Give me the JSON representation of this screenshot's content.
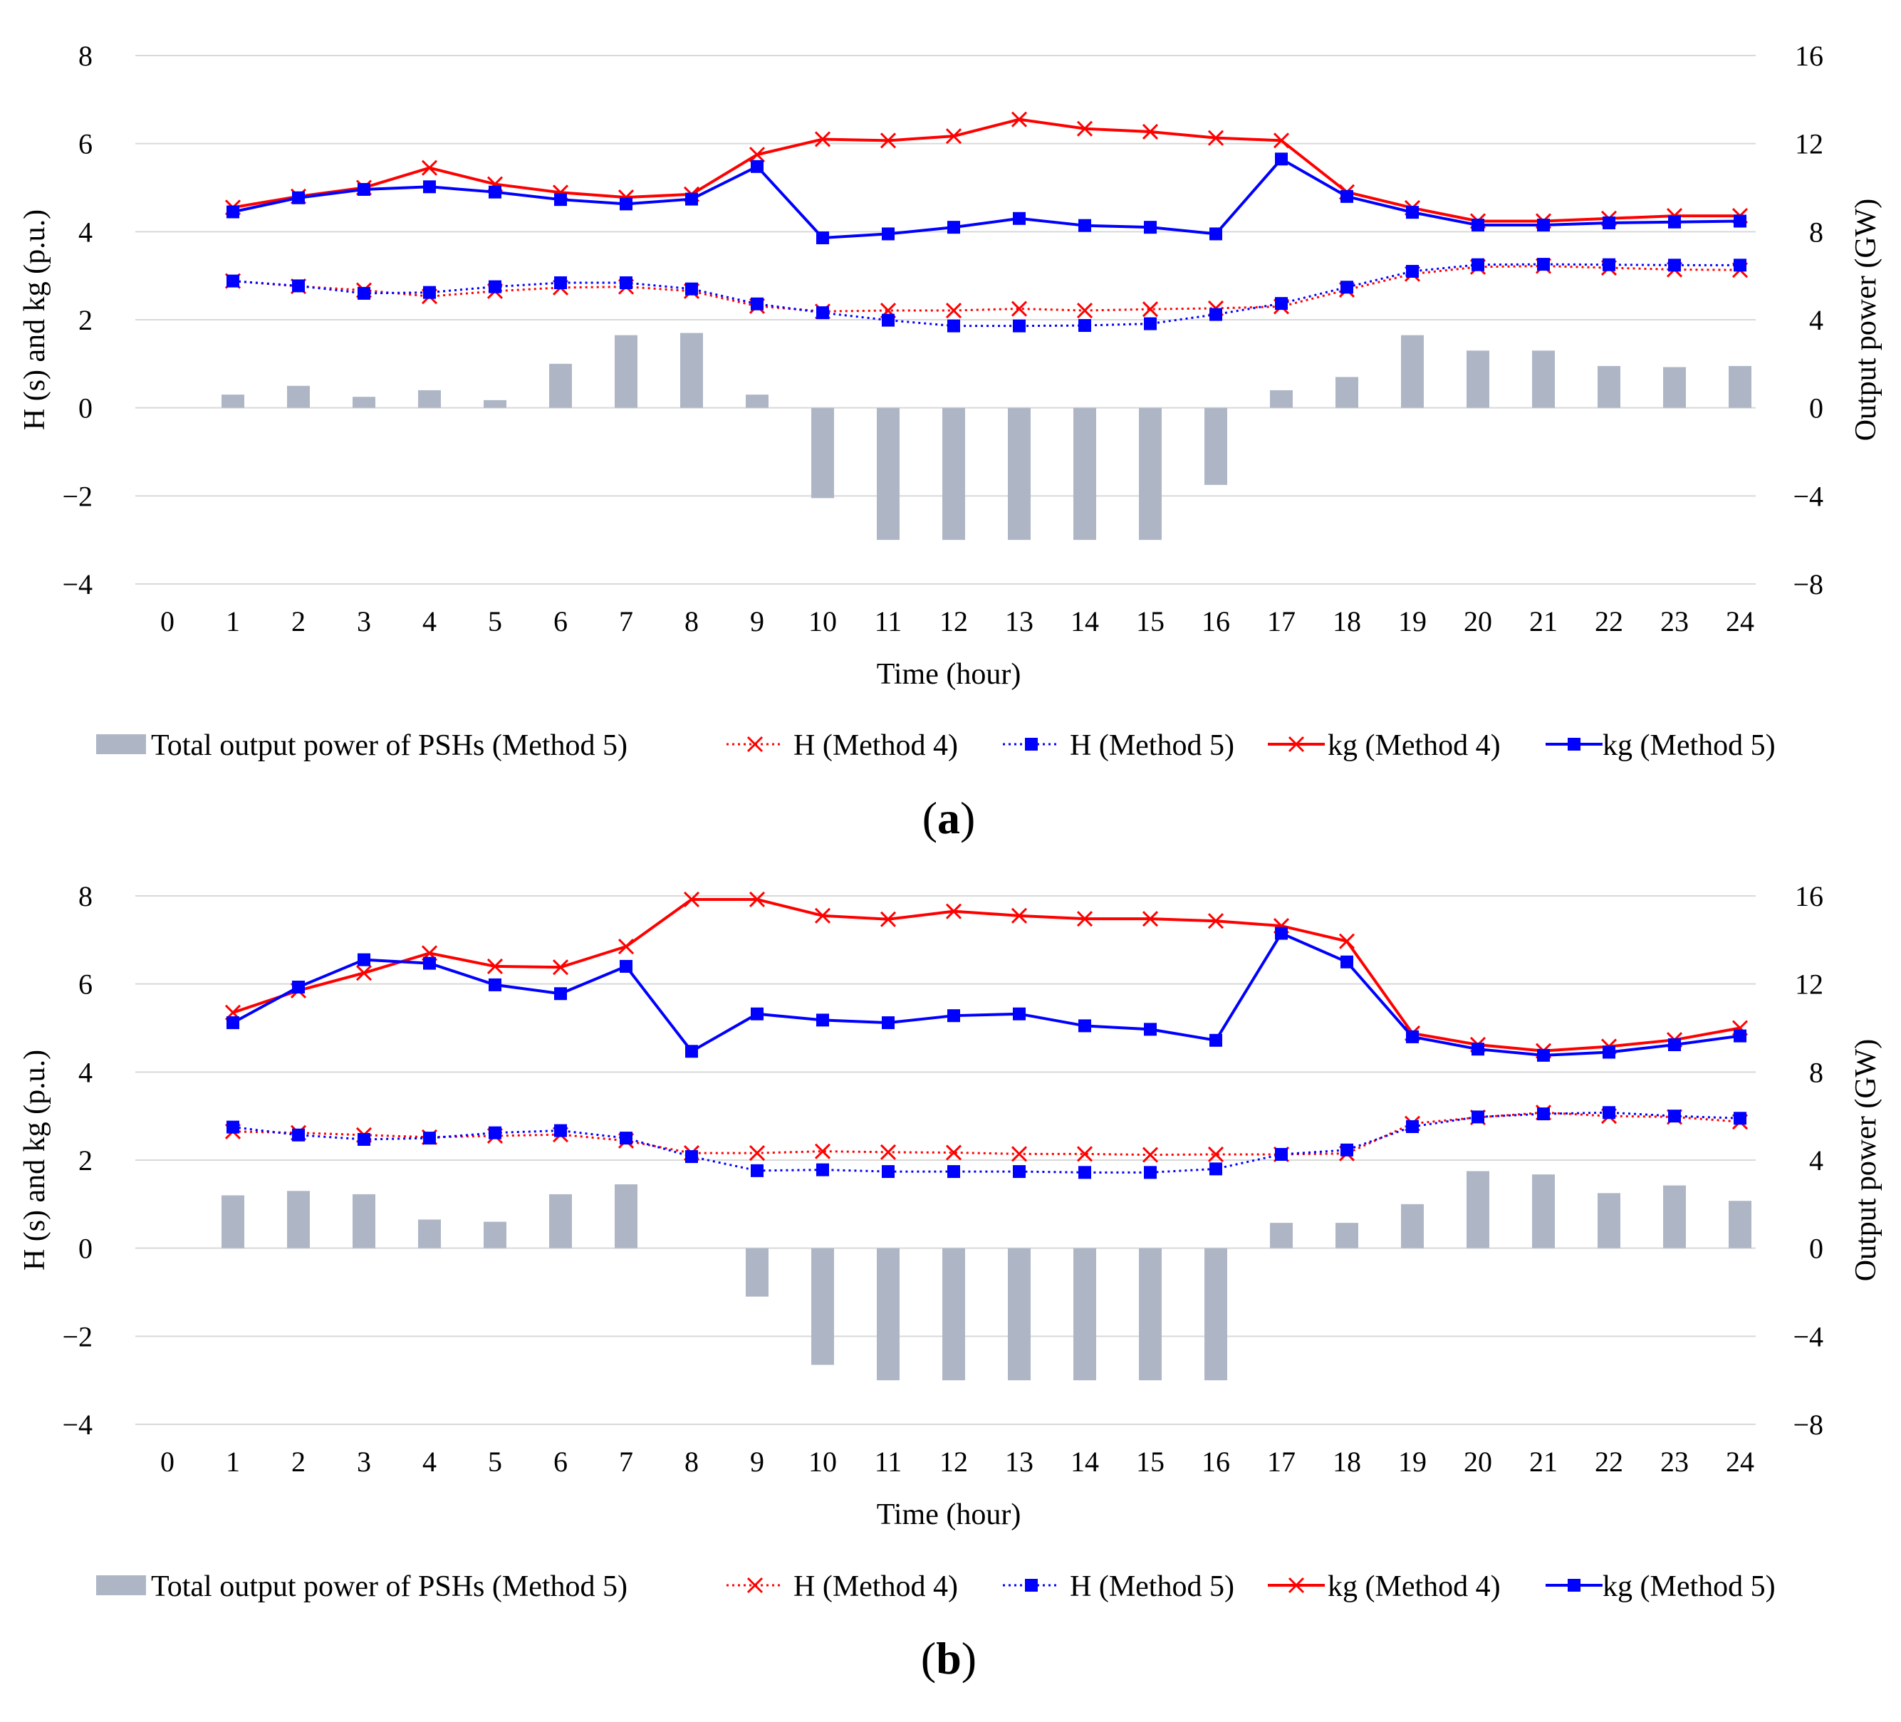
{
  "chart_data": [
    {
      "type": "bar+line",
      "panel_label": {
        "open": "(",
        "letter": "a",
        "close": ")"
      },
      "xlabel": "Time (hour)",
      "ylabel_left": "H (s) and kg (p.u.)",
      "ylabel_right": "Output power (GW)",
      "ylim_left": [
        -4,
        8
      ],
      "ylim_right": [
        -8,
        16
      ],
      "yticks_left": [
        "−4",
        "−2",
        "0",
        "2",
        "4",
        "6",
        "8"
      ],
      "yticks_right": [
        "−8",
        "−4",
        "0",
        "4",
        "8",
        "12",
        "16"
      ],
      "x_ticks": [
        "0",
        "1",
        "2",
        "3",
        "4",
        "5",
        "6",
        "7",
        "8",
        "9",
        "10",
        "11",
        "12",
        "13",
        "14",
        "15",
        "16",
        "17",
        "18",
        "19",
        "20",
        "21",
        "22",
        "23",
        "24"
      ],
      "hours": [
        1,
        2,
        3,
        4,
        5,
        6,
        7,
        8,
        9,
        10,
        11,
        12,
        13,
        14,
        15,
        16,
        17,
        18,
        19,
        20,
        21,
        22,
        23,
        24
      ],
      "legend": [
        "Total output power of PSHs (Method 5)",
        "H (Method 4)",
        "H (Method 5)",
        "kg (Method 4)",
        "kg (Method 5)"
      ],
      "bars_gw": [
        0.6,
        1.0,
        0.5,
        0.8,
        0.35,
        2.0,
        3.3,
        3.4,
        0.6,
        -4.1,
        -6.0,
        -6.0,
        -6.0,
        -6.0,
        -6.0,
        -3.5,
        0.8,
        1.4,
        3.3,
        2.6,
        2.6,
        1.9,
        1.85,
        1.9
      ],
      "series": [
        {
          "name": "H (Method 4)",
          "style": "dotted-x",
          "color": "#ff0000",
          "values": [
            2.88,
            2.76,
            2.67,
            2.53,
            2.65,
            2.73,
            2.75,
            2.65,
            2.31,
            2.19,
            2.21,
            2.21,
            2.25,
            2.21,
            2.24,
            2.26,
            2.3,
            2.68,
            3.04,
            3.2,
            3.22,
            3.18,
            3.14,
            3.13
          ]
        },
        {
          "name": "H (Method 5)",
          "style": "dotted-square",
          "color": "#0000ff",
          "values": [
            2.88,
            2.77,
            2.6,
            2.62,
            2.75,
            2.84,
            2.84,
            2.7,
            2.36,
            2.16,
            1.99,
            1.86,
            1.86,
            1.87,
            1.91,
            2.12,
            2.37,
            2.74,
            3.1,
            3.25,
            3.26,
            3.25,
            3.24,
            3.24
          ]
        },
        {
          "name": "kg (Method 4)",
          "style": "solid-x",
          "color": "#ff0000",
          "values": [
            4.55,
            4.8,
            5.0,
            5.45,
            5.08,
            4.89,
            4.78,
            4.85,
            5.75,
            6.1,
            6.07,
            6.17,
            6.55,
            6.34,
            6.27,
            6.13,
            6.07,
            4.9,
            4.54,
            4.24,
            4.24,
            4.3,
            4.36,
            4.36
          ]
        },
        {
          "name": "kg (Method 5)",
          "style": "solid-square",
          "color": "#0000ff",
          "values": [
            4.45,
            4.77,
            4.96,
            5.02,
            4.9,
            4.73,
            4.63,
            4.74,
            5.48,
            3.86,
            3.95,
            4.1,
            4.3,
            4.14,
            4.1,
            3.95,
            5.65,
            4.8,
            4.44,
            4.15,
            4.15,
            4.2,
            4.22,
            4.24
          ]
        }
      ]
    },
    {
      "type": "bar+line",
      "panel_label": {
        "open": "(",
        "letter": "b",
        "close": ")"
      },
      "xlabel": "Time (hour)",
      "ylabel_left": "H (s) and kg (p.u.)",
      "ylabel_right": "Output power (GW)",
      "ylim_left": [
        -4,
        8
      ],
      "ylim_right": [
        -8,
        16
      ],
      "yticks_left": [
        "−4",
        "−2",
        "0",
        "2",
        "4",
        "6",
        "8"
      ],
      "yticks_right": [
        "−8",
        "−4",
        "0",
        "4",
        "8",
        "12",
        "16"
      ],
      "x_ticks": [
        "0",
        "1",
        "2",
        "3",
        "4",
        "5",
        "6",
        "7",
        "8",
        "9",
        "10",
        "11",
        "12",
        "13",
        "14",
        "15",
        "16",
        "17",
        "18",
        "19",
        "20",
        "21",
        "22",
        "23",
        "24"
      ],
      "hours": [
        1,
        2,
        3,
        4,
        5,
        6,
        7,
        8,
        9,
        10,
        11,
        12,
        13,
        14,
        15,
        16,
        17,
        18,
        19,
        20,
        21,
        22,
        23,
        24
      ],
      "legend": [
        "Total output power of PSHs (Method 5)",
        "H (Method 4)",
        "H (Method 5)",
        "kg (Method 4)",
        "kg (Method 5)"
      ],
      "bars_gw": [
        2.4,
        2.6,
        2.45,
        1.3,
        1.2,
        2.45,
        2.9,
        0,
        -2.2,
        -5.3,
        -6.0,
        -6.0,
        -6.0,
        -6.0,
        -6.0,
        -6.0,
        1.15,
        1.15,
        2.0,
        3.5,
        3.35,
        2.5,
        2.85,
        2.15
      ],
      "series": [
        {
          "name": "H (Method 4)",
          "style": "dotted-x",
          "color": "#ff0000",
          "values": [
            2.65,
            2.62,
            2.57,
            2.52,
            2.55,
            2.58,
            2.44,
            2.16,
            2.16,
            2.2,
            2.18,
            2.17,
            2.14,
            2.14,
            2.12,
            2.13,
            2.13,
            2.15,
            2.83,
            2.97,
            3.08,
            3.0,
            2.98,
            2.87
          ]
        },
        {
          "name": "H (Method 5)",
          "style": "dotted-square",
          "color": "#0000ff",
          "values": [
            2.75,
            2.57,
            2.47,
            2.5,
            2.62,
            2.67,
            2.5,
            2.08,
            1.76,
            1.78,
            1.74,
            1.74,
            1.74,
            1.72,
            1.72,
            1.8,
            2.13,
            2.23,
            2.76,
            2.98,
            3.05,
            3.08,
            3.0,
            2.95
          ]
        },
        {
          "name": "kg (Method 4)",
          "style": "solid-x",
          "color": "#ff0000",
          "values": [
            5.35,
            5.85,
            6.25,
            6.7,
            6.4,
            6.38,
            6.85,
            7.92,
            7.92,
            7.55,
            7.47,
            7.65,
            7.55,
            7.48,
            7.48,
            7.43,
            7.32,
            6.97,
            4.88,
            4.62,
            4.48,
            4.58,
            4.73,
            5.0
          ]
        },
        {
          "name": "kg (Method 5)",
          "style": "solid-square",
          "color": "#0000ff",
          "values": [
            5.12,
            5.93,
            6.55,
            6.47,
            5.98,
            5.78,
            6.4,
            4.47,
            5.32,
            5.18,
            5.12,
            5.28,
            5.32,
            5.05,
            4.97,
            4.72,
            7.15,
            6.5,
            4.8,
            4.52,
            4.38,
            4.45,
            4.62,
            4.82
          ]
        }
      ]
    }
  ]
}
